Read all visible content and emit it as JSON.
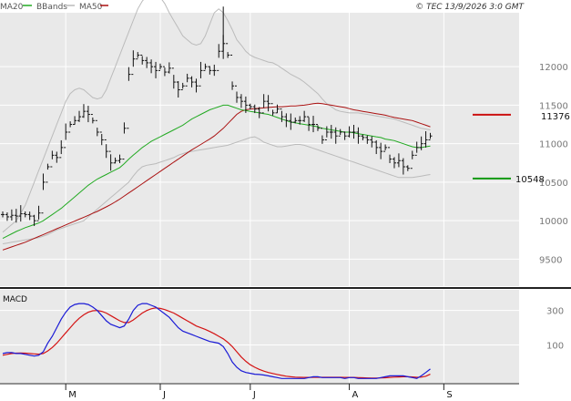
{
  "header": {
    "legend": [
      {
        "label": "MA20",
        "color": "#22aa22"
      },
      {
        "label": "BBands",
        "color": "#bbbbbb"
      },
      {
        "label": "MA50",
        "color": "#aa1111"
      }
    ],
    "timestamp": "© TEC 13/9/2026 3:0 GMT"
  },
  "colors": {
    "background": "#e9e9e9",
    "grid": "#ffffff",
    "price_bars": "#111111",
    "ma20": "#22aa22",
    "ma50": "#aa1111",
    "bbands": "#bbbbbb",
    "macd": "#1a1ad6",
    "signal": "#d41414",
    "resistance": "#cc1111",
    "support": "#119911"
  },
  "chart_data": [
    {
      "type": "ohlc",
      "panel": "price",
      "y_ticks": [
        9500,
        10000,
        10500,
        11000,
        11500,
        12000
      ],
      "y_tick_labels": [
        "9500",
        "10000",
        "10500",
        "11000",
        "11500",
        "12000"
      ],
      "ylim": [
        9150,
        12700
      ],
      "x_tick_labels": [
        "M",
        "J",
        "J",
        "A",
        "S"
      ],
      "x_tick_days": [
        14,
        35,
        55,
        77,
        98
      ],
      "n_days": 105,
      "series_names": [
        "MA20",
        "BBands",
        "MA50"
      ],
      "levels": [
        {
          "name": "resistance",
          "value": 11376,
          "label": "11376"
        },
        {
          "name": "support",
          "value": 10548,
          "label": "10548"
        }
      ],
      "price": [
        10080,
        10050,
        10070,
        10060,
        10090,
        10080,
        10060,
        10000,
        10100,
        10500,
        10700,
        10850,
        10820,
        10950,
        11150,
        11250,
        11300,
        11350,
        11420,
        11380,
        11300,
        11150,
        11050,
        10900,
        10750,
        10780,
        10800,
        11200,
        11900,
        12100,
        12150,
        12080,
        12050,
        12000,
        11950,
        12000,
        11930,
        11980,
        11800,
        11700,
        11750,
        11850,
        11800,
        11750,
        11950,
        12000,
        11950,
        11950,
        12200,
        12300,
        12150,
        11750,
        11600,
        11550,
        11500,
        11480,
        11450,
        11400,
        11550,
        11520,
        11400,
        11450,
        11350,
        11300,
        11280,
        11300,
        11300,
        11350,
        11250,
        11250,
        11200,
        11050,
        11150,
        11150,
        11100,
        11150,
        11100,
        11150,
        11150,
        11100,
        11080,
        11050,
        11020,
        10950,
        10900,
        10950,
        10800,
        10750,
        10780,
        10700,
        10680,
        10850,
        10950,
        11000,
        11050,
        11100
      ],
      "ma20": [
        9770,
        9800,
        9830,
        9860,
        9885,
        9910,
        9930,
        9950,
        9970,
        10000,
        10040,
        10080,
        10120,
        10160,
        10210,
        10260,
        10310,
        10360,
        10410,
        10460,
        10500,
        10540,
        10570,
        10600,
        10630,
        10660,
        10690,
        10740,
        10800,
        10850,
        10900,
        10950,
        10990,
        11030,
        11060,
        11090,
        11120,
        11150,
        11180,
        11210,
        11240,
        11280,
        11320,
        11350,
        11380,
        11410,
        11440,
        11460,
        11480,
        11500,
        11500,
        11480,
        11460,
        11440,
        11430,
        11420,
        11410,
        11400,
        11390,
        11380,
        11360,
        11340,
        11320,
        11300,
        11280,
        11270,
        11260,
        11250,
        11240,
        11230,
        11220,
        11200,
        11190,
        11180,
        11170,
        11160,
        11150,
        11150,
        11140,
        11130,
        11120,
        11110,
        11100,
        11090,
        11080,
        11060,
        11050,
        11040,
        11020,
        11000,
        10980,
        10960,
        10950,
        10950,
        10960,
        10970
      ],
      "ma50": [
        9620,
        9640,
        9660,
        9680,
        9700,
        9720,
        9745,
        9770,
        9795,
        9820,
        9845,
        9870,
        9895,
        9920,
        9945,
        9970,
        9995,
        10020,
        10045,
        10070,
        10095,
        10120,
        10150,
        10180,
        10210,
        10245,
        10280,
        10320,
        10360,
        10400,
        10440,
        10480,
        10520,
        10560,
        10600,
        10640,
        10680,
        10720,
        10760,
        10800,
        10840,
        10880,
        10920,
        10955,
        10990,
        11025,
        11060,
        11100,
        11150,
        11200,
        11260,
        11320,
        11380,
        11420,
        11440,
        11450,
        11455,
        11460,
        11465,
        11470,
        11475,
        11480,
        11480,
        11485,
        11490,
        11490,
        11495,
        11500,
        11510,
        11520,
        11525,
        11520,
        11510,
        11500,
        11490,
        11480,
        11470,
        11455,
        11440,
        11430,
        11420,
        11410,
        11400,
        11390,
        11380,
        11370,
        11355,
        11340,
        11330,
        11320,
        11310,
        11300,
        11280,
        11260,
        11240,
        11220
      ],
      "bb_upper": [
        9850,
        9900,
        9950,
        10000,
        10100,
        10200,
        10350,
        10500,
        10650,
        10800,
        10950,
        11100,
        11250,
        11400,
        11550,
        11650,
        11700,
        11720,
        11700,
        11650,
        11600,
        11580,
        11600,
        11700,
        11850,
        12000,
        12150,
        12300,
        12450,
        12600,
        12750,
        12850,
        12920,
        12950,
        12940,
        12900,
        12820,
        12700,
        12600,
        12500,
        12400,
        12350,
        12300,
        12280,
        12300,
        12400,
        12550,
        12700,
        12750,
        12700,
        12600,
        12480,
        12350,
        12280,
        12200,
        12150,
        12120,
        12100,
        12080,
        12060,
        12050,
        12020,
        11980,
        11940,
        11900,
        11870,
        11840,
        11800,
        11750,
        11700,
        11650,
        11580,
        11520,
        11480,
        11440,
        11420,
        11410,
        11400,
        11400,
        11400,
        11390,
        11380,
        11370,
        11360,
        11350,
        11340,
        11330,
        11320,
        11300,
        11280,
        11260,
        11240,
        11220,
        11200,
        11190,
        11180
      ],
      "bb_lower": [
        9700,
        9710,
        9720,
        9730,
        9740,
        9750,
        9760,
        9770,
        9780,
        9800,
        9820,
        9850,
        9880,
        9900,
        9920,
        9940,
        9960,
        9980,
        10000,
        10050,
        10100,
        10150,
        10200,
        10250,
        10300,
        10350,
        10400,
        10450,
        10500,
        10580,
        10650,
        10700,
        10720,
        10730,
        10740,
        10760,
        10780,
        10800,
        10820,
        10850,
        10870,
        10890,
        10900,
        10910,
        10920,
        10930,
        10940,
        10950,
        10960,
        10970,
        10980,
        11000,
        11020,
        11040,
        11060,
        11080,
        11090,
        11060,
        11020,
        11000,
        10980,
        10960,
        10960,
        10970,
        10980,
        10990,
        10990,
        10980,
        10960,
        10940,
        10920,
        10900,
        10880,
        10860,
        10840,
        10820,
        10800,
        10780,
        10760,
        10740,
        10720,
        10700,
        10680,
        10660,
        10640,
        10620,
        10600,
        10580,
        10560,
        10560,
        10560,
        10560,
        10570,
        10580,
        10590,
        10600
      ]
    },
    {
      "type": "line",
      "panel": "macd",
      "title": "MACD",
      "y_ticks": [
        100,
        300
      ],
      "y_tick_labels": [
        "100",
        "300"
      ],
      "ylim": [
        -120,
        420
      ],
      "series_names": [
        "MACD",
        "Signal"
      ],
      "macd": [
        50,
        55,
        55,
        50,
        50,
        45,
        40,
        35,
        40,
        60,
        110,
        150,
        200,
        250,
        290,
        320,
        335,
        340,
        340,
        335,
        320,
        300,
        270,
        240,
        220,
        210,
        200,
        210,
        250,
        300,
        330,
        340,
        340,
        330,
        320,
        300,
        280,
        260,
        230,
        200,
        180,
        170,
        160,
        150,
        140,
        130,
        120,
        115,
        110,
        90,
        50,
        0,
        -30,
        -50,
        -60,
        -65,
        -70,
        -72,
        -75,
        -80,
        -85,
        -90,
        -95,
        -95,
        -95,
        -95,
        -95,
        -95,
        -90,
        -85,
        -85,
        -90,
        -90,
        -90,
        -90,
        -90,
        -95,
        -90,
        -90,
        -95,
        -95,
        -95,
        -95,
        -95,
        -90,
        -85,
        -80,
        -80,
        -80,
        -80,
        -85,
        -90,
        -95,
        -80,
        -60,
        -40
      ],
      "signal": [
        40,
        45,
        50,
        52,
        53,
        52,
        50,
        48,
        46,
        50,
        65,
        85,
        110,
        140,
        170,
        200,
        230,
        255,
        275,
        290,
        298,
        300,
        295,
        285,
        270,
        255,
        240,
        230,
        230,
        245,
        265,
        285,
        300,
        310,
        315,
        312,
        305,
        295,
        285,
        270,
        255,
        240,
        225,
        210,
        200,
        190,
        178,
        165,
        150,
        135,
        115,
        90,
        60,
        30,
        5,
        -15,
        -30,
        -42,
        -52,
        -60,
        -66,
        -72,
        -77,
        -82,
        -85,
        -87,
        -88,
        -89,
        -89,
        -88,
        -88,
        -88,
        -88,
        -88,
        -88,
        -88,
        -89,
        -89,
        -89,
        -90,
        -91,
        -92,
        -93,
        -93,
        -92,
        -91,
        -89,
        -87,
        -86,
        -85,
        -85,
        -86,
        -88,
        -87,
        -82,
        -70
      ]
    }
  ]
}
